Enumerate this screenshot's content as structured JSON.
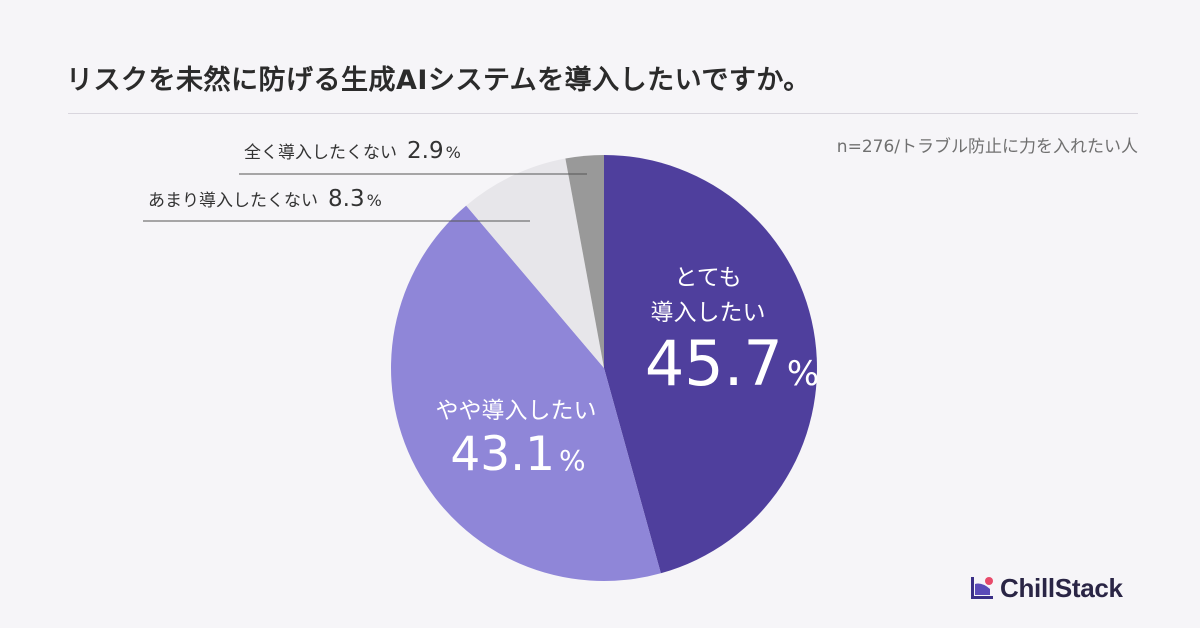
{
  "header": {
    "title": "リスクを未然に防げる生成AIシステムを導入したいですか。",
    "note": "n=276/トラブル防止に力を入れたい人"
  },
  "brand": {
    "name": "ChillStack",
    "mark_icon": "chillstack-logo-icon"
  },
  "chart_data": {
    "type": "pie",
    "start_angle_deg": 0,
    "direction": "clockwise",
    "slices": [
      {
        "label": "とても\n導入したい",
        "value": 45.7,
        "value_text": "45.7",
        "unit": "%",
        "color": "#4f3f9d",
        "label_color": "#ffffff",
        "label_position": "inside"
      },
      {
        "label": "やや導入したい",
        "value": 43.1,
        "value_text": "43.1",
        "unit": "%",
        "color": "#8f86d8",
        "label_color": "#ffffff",
        "label_position": "inside"
      },
      {
        "label": "あまり導入したくない",
        "value": 8.3,
        "value_text": "8.3",
        "unit": "%",
        "color": "#e7e6ea",
        "label_color": "#333333",
        "label_position": "outside"
      },
      {
        "label": "全く導入したくない",
        "value": 2.9,
        "value_text": "2.9",
        "unit": "%",
        "color": "#999999",
        "label_color": "#333333",
        "label_position": "outside"
      }
    ],
    "legend": "none"
  }
}
